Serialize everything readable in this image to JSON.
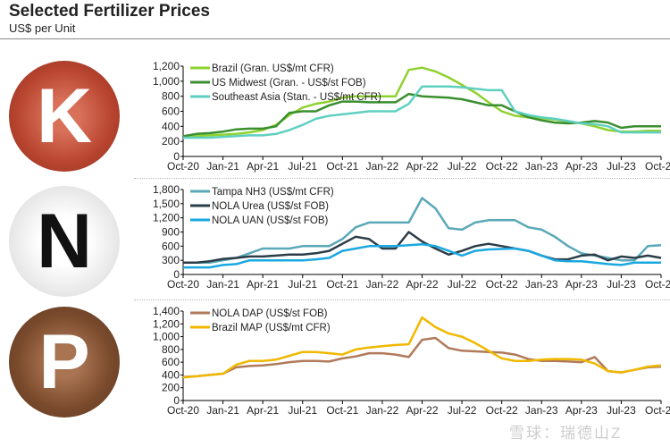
{
  "title": "Selected Fertilizer Prices",
  "subtitle": "US$ per Unit",
  "letters": {
    "k": "K",
    "n": "N",
    "p": "P"
  },
  "watermark": "雪球：瑞德山Z",
  "chart_data": [
    {
      "type": "line",
      "ylim": [
        0,
        1200
      ],
      "yticks": [
        0,
        200,
        400,
        600,
        800,
        1000,
        1200
      ],
      "legend": "top-left",
      "x": [
        "Oct-20",
        "Nov-20",
        "Dec-20",
        "Jan-21",
        "Feb-21",
        "Mar-21",
        "Apr-21",
        "May-21",
        "Jun-21",
        "Jul-21",
        "Aug-21",
        "Sep-21",
        "Oct-21",
        "Nov-21",
        "Dec-21",
        "Jan-22",
        "Feb-22",
        "Mar-22",
        "Apr-22",
        "May-22",
        "Jun-22",
        "Jul-22",
        "Aug-22",
        "Sep-22",
        "Oct-22",
        "Nov-22",
        "Dec-22",
        "Jan-23",
        "Feb-23",
        "Mar-23",
        "Apr-23",
        "May-23",
        "Jun-23",
        "Jul-23",
        "Aug-23",
        "Sep-23",
        "Oct-23"
      ],
      "xticks": [
        "Oct-20",
        "Jan-21",
        "Apr-21",
        "Jul-21",
        "Oct-21",
        "Jan-22",
        "Apr-22",
        "Jul-22",
        "Oct-22",
        "Jan-23",
        "Apr-23",
        "Jul-23",
        "Oct-23"
      ],
      "series": [
        {
          "name": "Brazil (Gran. US$/mt CFR)",
          "color": "#8fd12f",
          "values": [
            260,
            270,
            280,
            290,
            300,
            320,
            350,
            420,
            550,
            650,
            700,
            730,
            780,
            800,
            800,
            800,
            800,
            1150,
            1180,
            1130,
            1050,
            950,
            850,
            720,
            600,
            540,
            520,
            510,
            490,
            460,
            440,
            400,
            350,
            330,
            330,
            340,
            340
          ]
        },
        {
          "name": "US Midwest (Gran. - US$/st FOB)",
          "color": "#3a8f2e",
          "values": [
            270,
            300,
            310,
            330,
            360,
            370,
            370,
            400,
            580,
            600,
            600,
            680,
            730,
            730,
            720,
            720,
            720,
            830,
            800,
            790,
            780,
            760,
            720,
            680,
            680,
            600,
            520,
            480,
            450,
            440,
            450,
            470,
            450,
            380,
            400,
            400,
            400
          ]
        },
        {
          "name": "Southeast Asia (Stan. - US$/mt CFR)",
          "color": "#5fd0c0",
          "values": [
            250,
            250,
            250,
            260,
            270,
            280,
            280,
            300,
            350,
            420,
            500,
            540,
            560,
            580,
            600,
            600,
            600,
            700,
            930,
            930,
            930,
            920,
            900,
            880,
            880,
            600,
            550,
            520,
            500,
            470,
            440,
            430,
            400,
            320,
            320,
            320,
            320
          ]
        }
      ]
    },
    {
      "type": "line",
      "ylim": [
        0,
        1800
      ],
      "yticks": [
        0,
        300,
        600,
        900,
        1200,
        1500,
        1800
      ],
      "legend": "top-left",
      "x": [
        "Oct-20",
        "Nov-20",
        "Dec-20",
        "Jan-21",
        "Feb-21",
        "Mar-21",
        "Apr-21",
        "May-21",
        "Jun-21",
        "Jul-21",
        "Aug-21",
        "Sep-21",
        "Oct-21",
        "Nov-21",
        "Dec-21",
        "Jan-22",
        "Feb-22",
        "Mar-22",
        "Apr-22",
        "May-22",
        "Jun-22",
        "Jul-22",
        "Aug-22",
        "Sep-22",
        "Oct-22",
        "Nov-22",
        "Dec-22",
        "Jan-23",
        "Feb-23",
        "Mar-23",
        "Apr-23",
        "May-23",
        "Jun-23",
        "Jul-23",
        "Aug-23",
        "Sep-23",
        "Oct-23"
      ],
      "xticks": [
        "Oct-20",
        "Jan-21",
        "Apr-21",
        "Jul-21",
        "Oct-21",
        "Jan-22",
        "Apr-22",
        "Jul-22",
        "Oct-22",
        "Jan-23",
        "Apr-23",
        "Jul-23",
        "Oct-23"
      ],
      "series": [
        {
          "name": "Tampa NH3 (US$/mt CFR)",
          "color": "#5aa8b8",
          "values": [
            250,
            250,
            250,
            300,
            350,
            450,
            550,
            550,
            550,
            600,
            600,
            600,
            750,
            1000,
            1100,
            1100,
            1100,
            1100,
            1620,
            1400,
            980,
            950,
            1100,
            1150,
            1150,
            1150,
            1000,
            950,
            800,
            600,
            450,
            400,
            350,
            300,
            300,
            600,
            620
          ]
        },
        {
          "name": "NOLA Urea (US$/st FOB)",
          "color": "#2b3d48",
          "values": [
            250,
            250,
            280,
            330,
            350,
            380,
            380,
            400,
            420,
            420,
            450,
            500,
            650,
            800,
            750,
            550,
            550,
            900,
            700,
            550,
            420,
            500,
            600,
            650,
            600,
            550,
            500,
            400,
            320,
            320,
            400,
            420,
            300,
            380,
            350,
            400,
            350
          ]
        },
        {
          "name": "NOLA UAN (US$/st FOB)",
          "color": "#1aa8e0",
          "values": [
            150,
            150,
            150,
            200,
            220,
            300,
            300,
            300,
            300,
            300,
            320,
            350,
            500,
            550,
            600,
            600,
            600,
            620,
            640,
            600,
            500,
            400,
            500,
            530,
            540,
            550,
            500,
            400,
            300,
            280,
            280,
            250,
            220,
            200,
            250,
            250,
            250
          ]
        }
      ]
    },
    {
      "type": "line",
      "ylim": [
        0,
        1400
      ],
      "yticks": [
        0,
        200,
        400,
        600,
        800,
        1000,
        1200,
        1400
      ],
      "legend": "top-left",
      "x": [
        "Oct-20",
        "Nov-20",
        "Dec-20",
        "Jan-21",
        "Feb-21",
        "Mar-21",
        "Apr-21",
        "May-21",
        "Jun-21",
        "Jul-21",
        "Aug-21",
        "Sep-21",
        "Oct-21",
        "Nov-21",
        "Dec-21",
        "Jan-22",
        "Feb-22",
        "Mar-22",
        "Apr-22",
        "May-22",
        "Jun-22",
        "Jul-22",
        "Aug-22",
        "Sep-22",
        "Oct-22",
        "Nov-22",
        "Dec-22",
        "Jan-23",
        "Feb-23",
        "Mar-23",
        "Apr-23",
        "May-23",
        "Jun-23",
        "Jul-23",
        "Aug-23",
        "Sep-23",
        "Oct-23"
      ],
      "xticks": [
        "Oct-20",
        "Jan-21",
        "Apr-21",
        "Jul-21",
        "Oct-21",
        "Jan-22",
        "Apr-22",
        "Jul-22",
        "Oct-22",
        "Jan-23",
        "Apr-23",
        "Jul-23",
        "Oct-23"
      ],
      "series": [
        {
          "name": "NOLA DAP (US$/st FOB)",
          "color": "#b07a5a",
          "values": [
            370,
            380,
            400,
            420,
            520,
            540,
            550,
            570,
            600,
            620,
            620,
            610,
            660,
            690,
            740,
            740,
            720,
            680,
            950,
            980,
            820,
            780,
            770,
            760,
            750,
            720,
            650,
            620,
            620,
            610,
            600,
            680,
            460,
            440,
            480,
            520,
            530
          ]
        },
        {
          "name": "Brazil MAP (US$/mt CFR)",
          "color": "#f0b800",
          "values": [
            360,
            380,
            400,
            420,
            560,
            620,
            620,
            640,
            700,
            760,
            760,
            740,
            720,
            800,
            830,
            850,
            870,
            880,
            1300,
            1150,
            1050,
            1000,
            900,
            780,
            660,
            620,
            620,
            640,
            650,
            650,
            640,
            580,
            460,
            440,
            480,
            530,
            550
          ]
        }
      ]
    }
  ]
}
